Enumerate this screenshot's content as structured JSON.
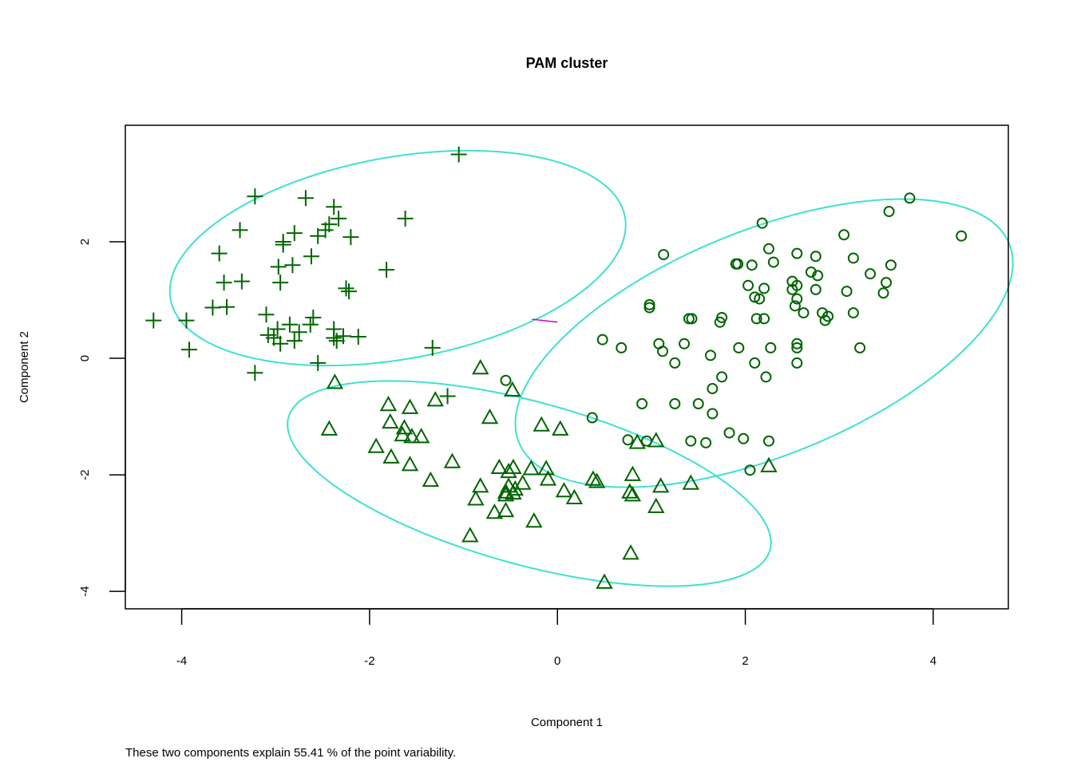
{
  "chart_data": {
    "type": "scatter",
    "title": "PAM cluster",
    "xlabel": "Component 1",
    "ylabel": "Component 2",
    "xlim": [
      -4.6,
      4.8
    ],
    "ylim": [
      -4.3,
      4.0
    ],
    "x_ticks": [
      -4,
      -2,
      0,
      2,
      4
    ],
    "y_ticks": [
      -4,
      -2,
      0,
      2
    ],
    "x_tick_labels": [
      "-4",
      "-2",
      "0",
      "2",
      "4"
    ],
    "y_tick_labels": [
      "-4",
      "-2",
      "0",
      "2"
    ],
    "grid": false,
    "legend": "none",
    "footnote": "These two components explain 55.41 % of the point variability.",
    "point_color": "#006400",
    "ellipse_color": "#40E0D0",
    "connector_color": "#CC00CC",
    "series": [
      {
        "marker": "plus",
        "points": [
          [
            -1.05,
            3.5
          ],
          [
            -3.22,
            2.78
          ],
          [
            -2.68,
            2.75
          ],
          [
            -2.38,
            2.6
          ],
          [
            -2.33,
            2.4
          ],
          [
            -1.62,
            2.4
          ],
          [
            -2.43,
            2.3
          ],
          [
            -3.38,
            2.2
          ],
          [
            -2.8,
            2.15
          ],
          [
            -2.55,
            2.1
          ],
          [
            -2.47,
            2.2
          ],
          [
            -2.2,
            2.08
          ],
          [
            -2.92,
            2.0
          ],
          [
            -2.92,
            1.95
          ],
          [
            -2.62,
            1.75
          ],
          [
            -3.6,
            1.8
          ],
          [
            -2.82,
            1.6
          ],
          [
            -2.97,
            1.57
          ],
          [
            -1.82,
            1.52
          ],
          [
            -3.55,
            1.3
          ],
          [
            -3.36,
            1.32
          ],
          [
            -2.95,
            1.3
          ],
          [
            -2.25,
            1.2
          ],
          [
            -2.22,
            1.15
          ],
          [
            -3.67,
            0.87
          ],
          [
            -3.52,
            0.88
          ],
          [
            -3.1,
            0.75
          ],
          [
            -2.6,
            0.7
          ],
          [
            -4.3,
            0.65
          ],
          [
            -3.95,
            0.65
          ],
          [
            -2.85,
            0.58
          ],
          [
            -2.98,
            0.5
          ],
          [
            -2.63,
            0.58
          ],
          [
            -2.38,
            0.5
          ],
          [
            -3.08,
            0.4
          ],
          [
            -3.02,
            0.35
          ],
          [
            -2.8,
            0.3
          ],
          [
            -2.75,
            0.45
          ],
          [
            -2.38,
            0.35
          ],
          [
            -2.28,
            0.38
          ],
          [
            -2.12,
            0.37
          ],
          [
            -2.95,
            0.25
          ],
          [
            -2.35,
            0.3
          ],
          [
            -3.92,
            0.15
          ],
          [
            -1.33,
            0.18
          ],
          [
            -2.55,
            -0.08
          ],
          [
            -3.22,
            -0.25
          ],
          [
            -1.17,
            -0.65
          ]
        ]
      },
      {
        "marker": "triangle",
        "points": [
          [
            -0.82,
            -0.17
          ],
          [
            -2.37,
            -0.42
          ],
          [
            -0.48,
            -0.55
          ],
          [
            -1.3,
            -0.72
          ],
          [
            -1.8,
            -0.8
          ],
          [
            -1.57,
            -0.85
          ],
          [
            -0.72,
            -1.02
          ],
          [
            -1.78,
            -1.1
          ],
          [
            -1.63,
            -1.2
          ],
          [
            -0.17,
            -1.15
          ],
          [
            0.03,
            -1.22
          ],
          [
            -2.43,
            -1.22
          ],
          [
            -1.65,
            -1.32
          ],
          [
            -1.55,
            -1.35
          ],
          [
            -1.45,
            -1.35
          ],
          [
            -1.93,
            -1.52
          ],
          [
            -1.77,
            -1.7
          ],
          [
            -1.57,
            -1.83
          ],
          [
            -1.12,
            -1.78
          ],
          [
            -0.62,
            -1.88
          ],
          [
            -0.47,
            -1.88
          ],
          [
            -0.28,
            -1.9
          ],
          [
            -0.12,
            -1.9
          ],
          [
            -0.52,
            -1.95
          ],
          [
            -1.35,
            -2.1
          ],
          [
            -0.1,
            -2.08
          ],
          [
            -0.37,
            -2.15
          ],
          [
            -0.82,
            -2.2
          ],
          [
            -0.52,
            -2.2
          ],
          [
            -0.55,
            -2.3
          ],
          [
            -0.45,
            -2.25
          ],
          [
            0.07,
            -2.28
          ],
          [
            -0.55,
            -2.35
          ],
          [
            -0.47,
            -2.32
          ],
          [
            -0.87,
            -2.42
          ],
          [
            0.18,
            -2.4
          ],
          [
            -0.67,
            -2.65
          ],
          [
            -0.55,
            -2.62
          ],
          [
            -0.25,
            -2.8
          ],
          [
            -0.93,
            -3.05
          ],
          [
            0.38,
            -2.08
          ],
          [
            0.42,
            -2.12
          ],
          [
            0.8,
            -2.0
          ],
          [
            0.77,
            -2.3
          ],
          [
            0.8,
            -2.35
          ],
          [
            1.1,
            -2.2
          ],
          [
            1.05,
            -2.55
          ],
          [
            0.78,
            -3.35
          ],
          [
            0.5,
            -3.85
          ],
          [
            0.85,
            -1.45
          ],
          [
            1.05,
            -1.42
          ],
          [
            1.42,
            -2.15
          ],
          [
            2.25,
            -1.85
          ]
        ]
      },
      {
        "marker": "circle",
        "points": [
          [
            3.75,
            2.75
          ],
          [
            3.53,
            2.52
          ],
          [
            4.3,
            2.1
          ],
          [
            3.05,
            2.12
          ],
          [
            2.18,
            2.32
          ],
          [
            2.25,
            1.88
          ],
          [
            2.55,
            1.8
          ],
          [
            2.75,
            1.75
          ],
          [
            3.15,
            1.72
          ],
          [
            1.13,
            1.78
          ],
          [
            1.9,
            1.62
          ],
          [
            1.92,
            1.62
          ],
          [
            2.07,
            1.6
          ],
          [
            2.3,
            1.65
          ],
          [
            3.55,
            1.6
          ],
          [
            2.7,
            1.48
          ],
          [
            2.77,
            1.42
          ],
          [
            3.33,
            1.45
          ],
          [
            2.5,
            1.32
          ],
          [
            2.55,
            1.25
          ],
          [
            2.03,
            1.25
          ],
          [
            2.2,
            1.2
          ],
          [
            2.5,
            1.18
          ],
          [
            2.75,
            1.18
          ],
          [
            3.08,
            1.15
          ],
          [
            3.5,
            1.3
          ],
          [
            3.47,
            1.12
          ],
          [
            2.1,
            1.05
          ],
          [
            2.15,
            1.02
          ],
          [
            2.55,
            1.02
          ],
          [
            0.98,
            0.92
          ],
          [
            0.98,
            0.87
          ],
          [
            2.53,
            0.9
          ],
          [
            2.62,
            0.78
          ],
          [
            2.82,
            0.78
          ],
          [
            2.88,
            0.72
          ],
          [
            3.15,
            0.78
          ],
          [
            1.4,
            0.68
          ],
          [
            1.43,
            0.68
          ],
          [
            1.75,
            0.7
          ],
          [
            1.73,
            0.62
          ],
          [
            2.12,
            0.68
          ],
          [
            2.2,
            0.68
          ],
          [
            2.85,
            0.65
          ],
          [
            0.48,
            0.32
          ],
          [
            0.68,
            0.18
          ],
          [
            1.08,
            0.25
          ],
          [
            1.35,
            0.25
          ],
          [
            2.27,
            0.18
          ],
          [
            2.55,
            0.25
          ],
          [
            2.55,
            0.18
          ],
          [
            1.93,
            0.18
          ],
          [
            3.22,
            0.18
          ],
          [
            1.12,
            0.12
          ],
          [
            1.63,
            0.05
          ],
          [
            1.25,
            -0.08
          ],
          [
            2.1,
            -0.08
          ],
          [
            2.55,
            -0.08
          ],
          [
            1.75,
            -0.32
          ],
          [
            2.22,
            -0.32
          ],
          [
            -0.55,
            -0.38
          ],
          [
            1.65,
            -0.52
          ],
          [
            0.9,
            -0.78
          ],
          [
            1.25,
            -0.78
          ],
          [
            1.5,
            -0.78
          ],
          [
            1.65,
            -0.95
          ],
          [
            0.37,
            -1.02
          ],
          [
            1.83,
            -1.28
          ],
          [
            1.98,
            -1.38
          ],
          [
            0.75,
            -1.4
          ],
          [
            0.95,
            -1.42
          ],
          [
            1.42,
            -1.42
          ],
          [
            1.58,
            -1.45
          ],
          [
            2.25,
            -1.42
          ],
          [
            2.05,
            -1.92
          ]
        ]
      }
    ],
    "ellipses": [
      {
        "cx": -1.7,
        "cy": 1.72,
        "rx": 2.55,
        "ry": 1.67,
        "angle_deg": 24
      },
      {
        "cx": -0.3,
        "cy": -2.15,
        "rx": 2.83,
        "ry": 1.31,
        "angle_deg": -28
      },
      {
        "cx": 2.2,
        "cy": 0.26,
        "rx": 3.2,
        "ry": 1.7,
        "angle_deg": 41.5
      }
    ],
    "connectors": [
      {
        "x1": -0.27,
        "y1": 0.67,
        "x2": 0.0,
        "y2": 0.62
      }
    ]
  }
}
